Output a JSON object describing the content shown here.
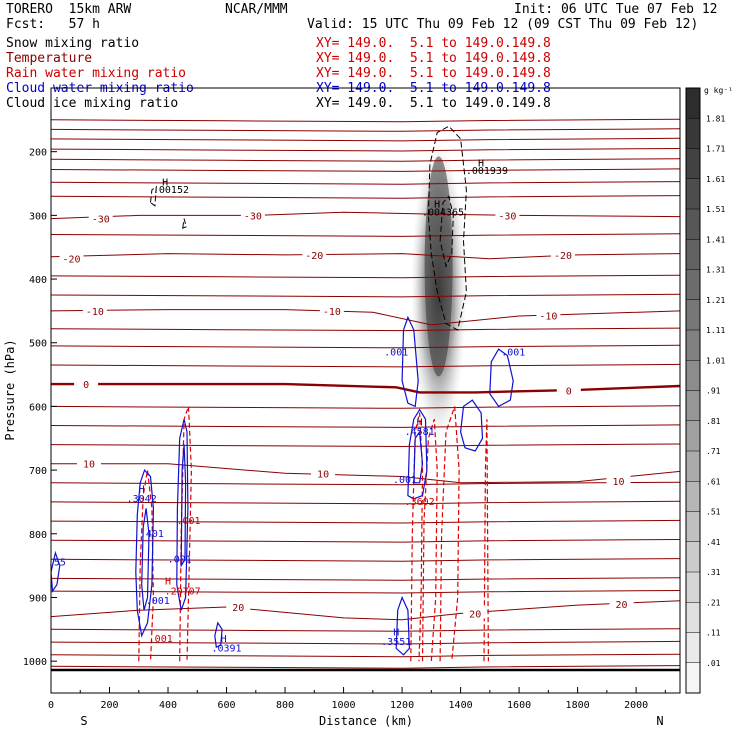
{
  "header": {
    "model": "TORERO  15km ARW",
    "forecast": "Fcst:   57 h",
    "center": "NCAR/MMM",
    "init": "Init: 06 UTC Tue 07 Feb 12",
    "valid": "Valid: 15 UTC Thu 09 Feb 12 (09 CST Thu 09 Feb 12)"
  },
  "legend": [
    {
      "label": "Snow mixing ratio",
      "xy": "XY= 149.0.  5.1 to 149.0.149.8",
      "color": "#000000"
    },
    {
      "label": "Temperature",
      "xy": "XY= 149.0.  5.1 to 149.0.149.8",
      "color": "#8b0000"
    },
    {
      "label": "Rain water mixing ratio",
      "xy": "XY= 149.0.  5.1 to 149.0.149.8",
      "color": "#cc0000"
    },
    {
      "label": "Cloud water mixing ratio",
      "xy": "XY= 149.0.  5.1 to 149.0.149.8",
      "color": "#0000cc"
    },
    {
      "label": "Cloud ice mixing ratio",
      "xy": "XY= 149.0.  5.1 to 149.0.149.8",
      "color": "#000000"
    }
  ],
  "chart_data": {
    "type": "cross-section",
    "xlabel": "Distance (km)",
    "ylabel": "Pressure (hPa)",
    "xlim": [
      0,
      2150
    ],
    "ylim": [
      1050,
      100
    ],
    "x_ticks": [
      0,
      200,
      400,
      600,
      800,
      1000,
      1200,
      1400,
      1600,
      1800,
      2000
    ],
    "y_ticks": [
      200,
      300,
      400,
      500,
      600,
      700,
      800,
      900,
      1000
    ],
    "x_end_labels": {
      "left": "S",
      "right": "N"
    },
    "colorbar": {
      "unit": "g kg⁻¹",
      "ticks": [
        ".01",
        ".11",
        ".21",
        ".31",
        ".41",
        ".51",
        ".61",
        ".71",
        ".81",
        ".91",
        "1.01",
        "1.11",
        "1.21",
        "1.31",
        "1.41",
        "1.51",
        "1.61",
        "1.71",
        "1.81"
      ]
    },
    "temperature_isotherms": {
      "color": "#8b0000",
      "lines": [
        {
          "value": -30,
          "label": "-30",
          "points": [
            [
              0,
              305
            ],
            [
              300,
              300
            ],
            [
              700,
              300
            ],
            [
              1000,
              295
            ],
            [
              1300,
              298
            ],
            [
              1600,
              300
            ],
            [
              2150,
              302
            ]
          ],
          "labels_at": [
            [
              170,
              305
            ],
            [
              690,
              300
            ],
            [
              1560,
              300
            ]
          ]
        },
        {
          "value": -20,
          "label": "-20",
          "points": [
            [
              0,
              365
            ],
            [
              400,
              360
            ],
            [
              800,
              362
            ],
            [
              1200,
              360
            ],
            [
              1500,
              368
            ],
            [
              1800,
              362
            ],
            [
              2150,
              360
            ]
          ],
          "labels_at": [
            [
              70,
              368
            ],
            [
              900,
              362
            ],
            [
              1750,
              362
            ]
          ]
        },
        {
          "value": -10,
          "label": "-10",
          "points": [
            [
              0,
              450
            ],
            [
              400,
              448
            ],
            [
              800,
              448
            ],
            [
              1100,
              452
            ],
            [
              1300,
              472
            ],
            [
              1600,
              458
            ],
            [
              2150,
              450
            ]
          ],
          "labels_at": [
            [
              150,
              450
            ],
            [
              960,
              450
            ],
            [
              1700,
              457
            ]
          ]
        },
        {
          "value": 0,
          "label": "0",
          "points": [
            [
              0,
              565
            ],
            [
              300,
              565
            ],
            [
              800,
              565
            ],
            [
              1180,
              570
            ],
            [
              1260,
              578
            ],
            [
              1450,
              578
            ],
            [
              1800,
              574
            ],
            [
              2150,
              568
            ]
          ],
          "labels_at": [
            [
              120,
              565
            ],
            [
              1770,
              575
            ]
          ],
          "bold": true
        },
        {
          "value": 10,
          "label": "10",
          "points": [
            [
              0,
              690
            ],
            [
              400,
              690
            ],
            [
              800,
              705
            ],
            [
              1200,
              710
            ],
            [
              1400,
              720
            ],
            [
              1800,
              718
            ],
            [
              2150,
              702
            ]
          ],
          "labels_at": [
            [
              130,
              690
            ],
            [
              930,
              705
            ],
            [
              1940,
              717
            ]
          ]
        },
        {
          "value": 20,
          "label": "20",
          "points": [
            [
              0,
              930
            ],
            [
              300,
              920
            ],
            [
              600,
              915
            ],
            [
              1000,
              932
            ],
            [
              1200,
              935
            ],
            [
              1400,
              925
            ],
            [
              1800,
              912
            ],
            [
              2150,
              905
            ]
          ],
          "labels_at": [
            [
              640,
              915
            ],
            [
              1450,
              925
            ],
            [
              1950,
              910
            ]
          ]
        }
      ],
      "extra_levels": [
        150,
        165,
        180,
        196,
        212,
        228,
        248,
        270,
        330,
        395,
        425,
        478,
        505,
        535,
        600,
        630,
        660,
        720,
        750,
        780,
        810,
        840,
        870,
        890,
        950,
        970,
        990,
        1008
      ]
    },
    "cloud_ice_max": [
      {
        "label": "H",
        "value": ".00152",
        "x": 410,
        "p": 265
      },
      {
        "label": "H",
        "value": ".001939",
        "x": 1490,
        "p": 235
      },
      {
        "label": "H",
        "value": ".004365",
        "x": 1340,
        "p": 300
      }
    ],
    "cloud_water_labels": [
      {
        "label": ".001",
        "x": 1180,
        "p": 520
      },
      {
        "label": ".001",
        "x": 1580,
        "p": 520
      },
      {
        "label": "H",
        "x": 1260,
        "p": 630
      },
      {
        "label": ".4581",
        "x": 1260,
        "p": 645
      },
      {
        "label": ".001",
        "x": 1210,
        "p": 720
      },
      {
        "label": "H",
        "x": 310,
        "p": 735
      },
      {
        "label": ".3042",
        "x": 310,
        "p": 750
      },
      {
        "label": ".401",
        "x": 345,
        "p": 805
      },
      {
        "label": ".001",
        "x": 440,
        "p": 845
      },
      {
        "label": ".001",
        "x": 365,
        "p": 910
      },
      {
        "label": ".55",
        "x": 20,
        "p": 850
      },
      {
        "label": "H",
        "x": 590,
        "p": 970
      },
      {
        "label": ".0391",
        "x": 600,
        "p": 985
      },
      {
        "label": "H",
        "x": 1180,
        "p": 960
      },
      {
        "label": ".3551",
        "x": 1180,
        "p": 975
      }
    ],
    "rain_labels": [
      {
        "label": ".001",
        "x": 470,
        "p": 785
      },
      {
        "label": "H",
        "x": 400,
        "p": 880
      },
      {
        "label": ".20707",
        "x": 450,
        "p": 895
      },
      {
        "label": ".001",
        "x": 375,
        "p": 970
      },
      {
        "label": ".3602",
        "x": 1260,
        "p": 755
      }
    ]
  }
}
